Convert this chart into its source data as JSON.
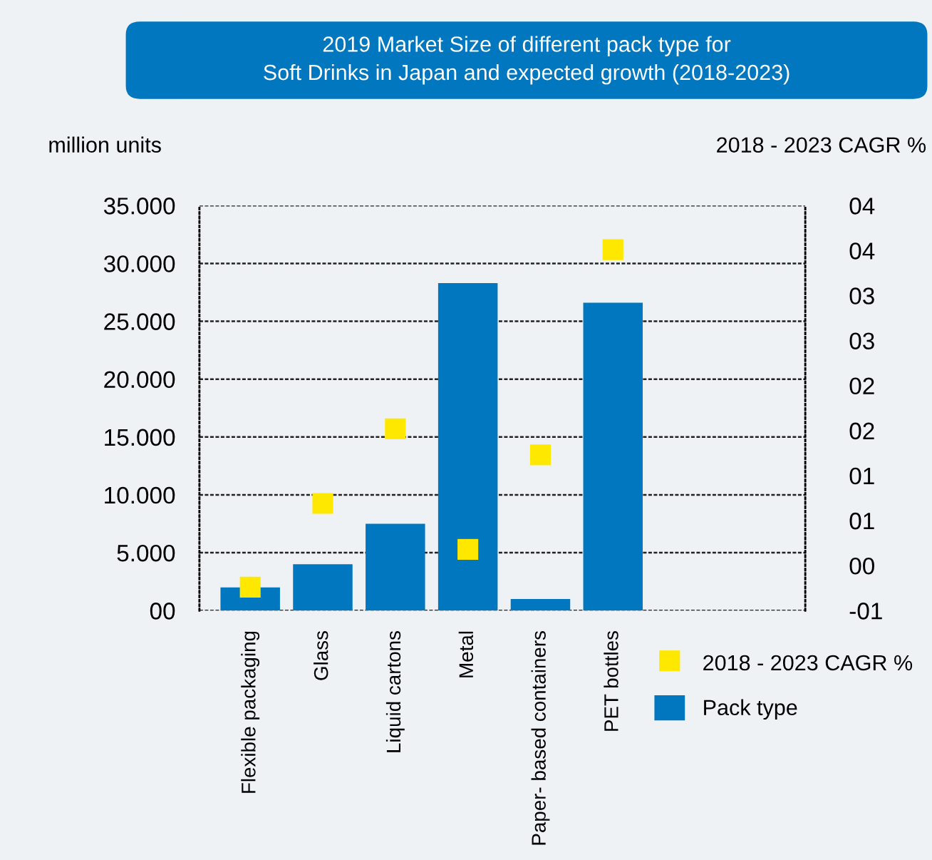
{
  "chart_data": {
    "type": "bar",
    "title": "2019 Market Size of different pack type for\nSoft Drinks in Japan and expected growth (2018-2023)",
    "ylabel": "million units",
    "y2label": "2018 - 2023 CAGR %",
    "categories": [
      "Flexible packaging",
      "Glass",
      "Liquid cartons",
      "Metal",
      "Paper- based containers",
      "PET bottles",
      null,
      null
    ],
    "series": [
      {
        "name": "2018 - 2023 CAGR %",
        "type": "scatter",
        "axis": "y2",
        "color": "#ffe800",
        "marker": "square",
        "values": [
          -0.24,
          0.69,
          1.52,
          0.18,
          1.23,
          3.51,
          null,
          null
        ]
      },
      {
        "name": "Pack type",
        "color": "#0077be",
        "values": [
          2000,
          4000,
          7500,
          28300,
          1000,
          26600,
          null,
          null
        ]
      }
    ],
    "ylim": [
      0,
      35000
    ],
    "yticks": [
      {
        "value": 0,
        "label": "00"
      },
      {
        "value": 5000,
        "label": "5.000"
      },
      {
        "value": 10000,
        "label": "10.000"
      },
      {
        "value": 15000,
        "label": "15.000"
      },
      {
        "value": 20000,
        "label": "20.000"
      },
      {
        "value": 25000,
        "label": "25.000"
      },
      {
        "value": 30000,
        "label": "30.000"
      },
      {
        "value": 35000,
        "label": "35.000"
      }
    ],
    "y2lim": [
      -0.5,
      4.0
    ],
    "y2ticks": [
      {
        "value": -0.5,
        "label": "-01"
      },
      {
        "value": 0,
        "label": "00"
      },
      {
        "value": 0.5,
        "label": "01"
      },
      {
        "value": 1.0,
        "label": "01"
      },
      {
        "value": 1.5,
        "label": "02"
      },
      {
        "value": 2.0,
        "label": "02"
      },
      {
        "value": 2.5,
        "label": "03"
      },
      {
        "value": 3.0,
        "label": "03"
      },
      {
        "value": 3.5,
        "label": "04"
      },
      {
        "value": 4.0,
        "label": "04"
      }
    ],
    "grid": "y",
    "legend": "bottom right"
  }
}
